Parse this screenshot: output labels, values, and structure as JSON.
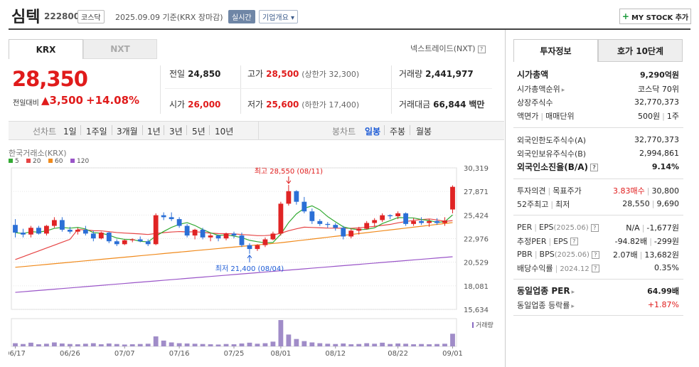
{
  "header": {
    "name": "심텍",
    "code": "222800",
    "market_tag": "코스닥",
    "date_text": "2025.09.09  기준(KRX 장마감)",
    "realtime_tag": "실시간",
    "company_tag": "기업개요",
    "mystock_label": "MY STOCK 추가"
  },
  "exchange_tabs": {
    "krx": "KRX",
    "nxt": "NXT",
    "nxt_link": "넥스트레이드(NXT)"
  },
  "price": {
    "current": "28,350",
    "change_label": "전일대비",
    "change": "▲3,500",
    "change_pct": "+14.08%"
  },
  "summary": {
    "prev_label": "전일",
    "prev": "24,850",
    "open_label": "시가",
    "open": "26,000",
    "high_label": "고가",
    "high": "28,500",
    "upper_limit": "(상한가 32,300)",
    "low_label": "저가",
    "low": "25,600",
    "lower_limit": "(하한가 17,400)",
    "volume_label": "거래량",
    "volume": "2,441,977",
    "value_label": "거래대금",
    "value": "66,844",
    "value_unit": "백만"
  },
  "periods": {
    "line_label": "선차트",
    "line_items": [
      "1일",
      "1주일",
      "3개월",
      "1년",
      "3년",
      "5년",
      "10년"
    ],
    "candle_label": "봉차트",
    "candle_items": [
      "일봉",
      "주봉",
      "월봉"
    ],
    "active": "일봉"
  },
  "chart_meta": {
    "source": "한국거래소(KRX)",
    "ma_legend": [
      {
        "label": "5",
        "color": "#33aa33"
      },
      {
        "label": "20",
        "color": "#e64545"
      },
      {
        "label": "60",
        "color": "#f08a1c"
      },
      {
        "label": "120",
        "color": "#9a55c8"
      }
    ],
    "high_annotation": "최고 28,550 (08/11)",
    "low_annotation": "최저 21,400 (08/04)",
    "volume_label": "거래량"
  },
  "chart_data": {
    "type": "candlestick",
    "y_ticks": [
      "30,319",
      "27,871",
      "25,424",
      "22,976",
      "20,529",
      "18,081",
      "15,634"
    ],
    "ylim": [
      15634,
      30319
    ],
    "x_ticks": [
      "06/17",
      "06/26",
      "07/07",
      "07/16",
      "07/25",
      "08/01",
      "08/12",
      "08/22",
      "09/01"
    ],
    "up_color": "#e02424",
    "down_color": "#2b6fd6",
    "candles": [
      [
        24400,
        25000,
        23100,
        23600
      ],
      [
        23600,
        24000,
        23100,
        23400
      ],
      [
        23400,
        24300,
        23100,
        24100
      ],
      [
        24100,
        24300,
        23400,
        23500
      ],
      [
        23500,
        24400,
        23300,
        24300
      ],
      [
        24300,
        25200,
        24100,
        24900
      ],
      [
        24900,
        25200,
        23700,
        23900
      ],
      [
        23900,
        24200,
        23500,
        23700
      ],
      [
        23700,
        24100,
        23400,
        23900
      ],
      [
        23900,
        24300,
        23300,
        23500
      ],
      [
        23500,
        23800,
        22700,
        23000
      ],
      [
        23000,
        23700,
        22900,
        23600
      ],
      [
        23600,
        23700,
        22500,
        22700
      ],
      [
        22700,
        22900,
        22200,
        22400
      ],
      [
        22400,
        22900,
        22300,
        22800
      ],
      [
        22800,
        23000,
        22600,
        22900
      ],
      [
        22900,
        23200,
        22600,
        22700
      ],
      [
        22700,
        22900,
        22200,
        22400
      ],
      [
        22400,
        25600,
        22300,
        25400
      ],
      [
        25400,
        25700,
        24900,
        25200
      ],
      [
        25200,
        25700,
        24800,
        25000
      ],
      [
        25000,
        25200,
        24100,
        24300
      ],
      [
        24300,
        24500,
        23100,
        23300
      ],
      [
        23300,
        24000,
        22900,
        23900
      ],
      [
        23900,
        24100,
        22900,
        23100
      ],
      [
        23100,
        23500,
        22700,
        23300
      ],
      [
        23300,
        23400,
        22700,
        23000
      ],
      [
        23000,
        23600,
        22800,
        23500
      ],
      [
        23500,
        23700,
        23000,
        23300
      ],
      [
        23300,
        23600,
        22100,
        22300
      ],
      [
        22300,
        22500,
        21400,
        21900
      ],
      [
        21900,
        22400,
        21700,
        22300
      ],
      [
        22300,
        23100,
        22100,
        22900
      ],
      [
        22900,
        23700,
        22800,
        23500
      ],
      [
        23500,
        26800,
        23300,
        26600
      ],
      [
        26600,
        28550,
        26400,
        27900
      ],
      [
        27900,
        28000,
        26500,
        26800
      ],
      [
        26800,
        27300,
        25600,
        25800
      ],
      [
        25800,
        26100,
        24500,
        24800
      ],
      [
        24800,
        25000,
        24300,
        24500
      ],
      [
        24500,
        24700,
        24100,
        24400
      ],
      [
        24400,
        24600,
        23800,
        24100
      ],
      [
        24100,
        24300,
        22900,
        23200
      ],
      [
        23200,
        24000,
        23000,
        23800
      ],
      [
        23800,
        24200,
        23400,
        24000
      ],
      [
        24000,
        24800,
        23900,
        24600
      ],
      [
        24600,
        25100,
        24200,
        24900
      ],
      [
        24900,
        25600,
        24700,
        25400
      ],
      [
        25400,
        25500,
        25000,
        25300
      ],
      [
        25300,
        25800,
        25000,
        25600
      ],
      [
        25600,
        25700,
        24300,
        24500
      ],
      [
        24500,
        25100,
        24300,
        24800
      ],
      [
        24800,
        25200,
        24400,
        24600
      ],
      [
        24600,
        25000,
        24200,
        24800
      ],
      [
        24800,
        25100,
        24400,
        24600
      ],
      [
        24600,
        25200,
        24300,
        24850
      ],
      [
        26000,
        28500,
        25600,
        28350
      ]
    ],
    "volumes": [
      12,
      9,
      14,
      8,
      10,
      15,
      11,
      9,
      8,
      10,
      12,
      8,
      11,
      9,
      7,
      8,
      9,
      10,
      38,
      22,
      15,
      12,
      11,
      10,
      9,
      8,
      7,
      9,
      8,
      11,
      14,
      10,
      12,
      18,
      100,
      45,
      28,
      20,
      15,
      12,
      10,
      9,
      11,
      8,
      9,
      12,
      10,
      14,
      9,
      11,
      10,
      8,
      9,
      8,
      9,
      10,
      48
    ]
  },
  "right_panel": {
    "tab_on": "투자정보",
    "tab_off": "호가 10단계",
    "market_cap_label": "시가총액",
    "market_cap": "9,290억원",
    "cap_rank_label": "시가총액순위",
    "cap_rank": "코스닥 70위",
    "shares_label": "상장주식수",
    "shares": "32,770,373",
    "par_label": "액면가",
    "lot_label": "매매단위",
    "par": "500원",
    "lot": "1주",
    "foreign_limit_label": "외국인한도주식수(A)",
    "foreign_limit": "32,770,373",
    "foreign_hold_label": "외국인보유주식수(B)",
    "foreign_hold": "2,994,861",
    "foreign_ratio_label": "외국인소진율(B/A)",
    "foreign_ratio": "9.14%",
    "opinion_label": "투자의견",
    "target_label": "목표주가",
    "opinion": "3.83매수",
    "target": "30,800",
    "wk52_label": "52주최고",
    "wk52_low_label": "최저",
    "wk52_high": "28,550",
    "wk52_low": "9,690",
    "per_label": "PER",
    "eps_label": "EPS",
    "eps_year": "(2025.06)",
    "per": "N/A",
    "eps": "-1,677원",
    "est_per_label": "추정PER",
    "est_eps_label": "EPS",
    "est_per": "-94.82배",
    "est_eps": "-299원",
    "pbr_label": "PBR",
    "bps_label": "BPS",
    "bps_year": "(2025.06)",
    "pbr": "2.07배",
    "bps": "13,682원",
    "dividend_label": "배당수익률",
    "dividend_year": "2024.12",
    "dividend": "0.35%",
    "sector_per_label": "동일업종 PER",
    "sector_per": "64.99배",
    "sector_rate_label": "동일업종 등락률",
    "sector_rate": "+1.87%"
  }
}
